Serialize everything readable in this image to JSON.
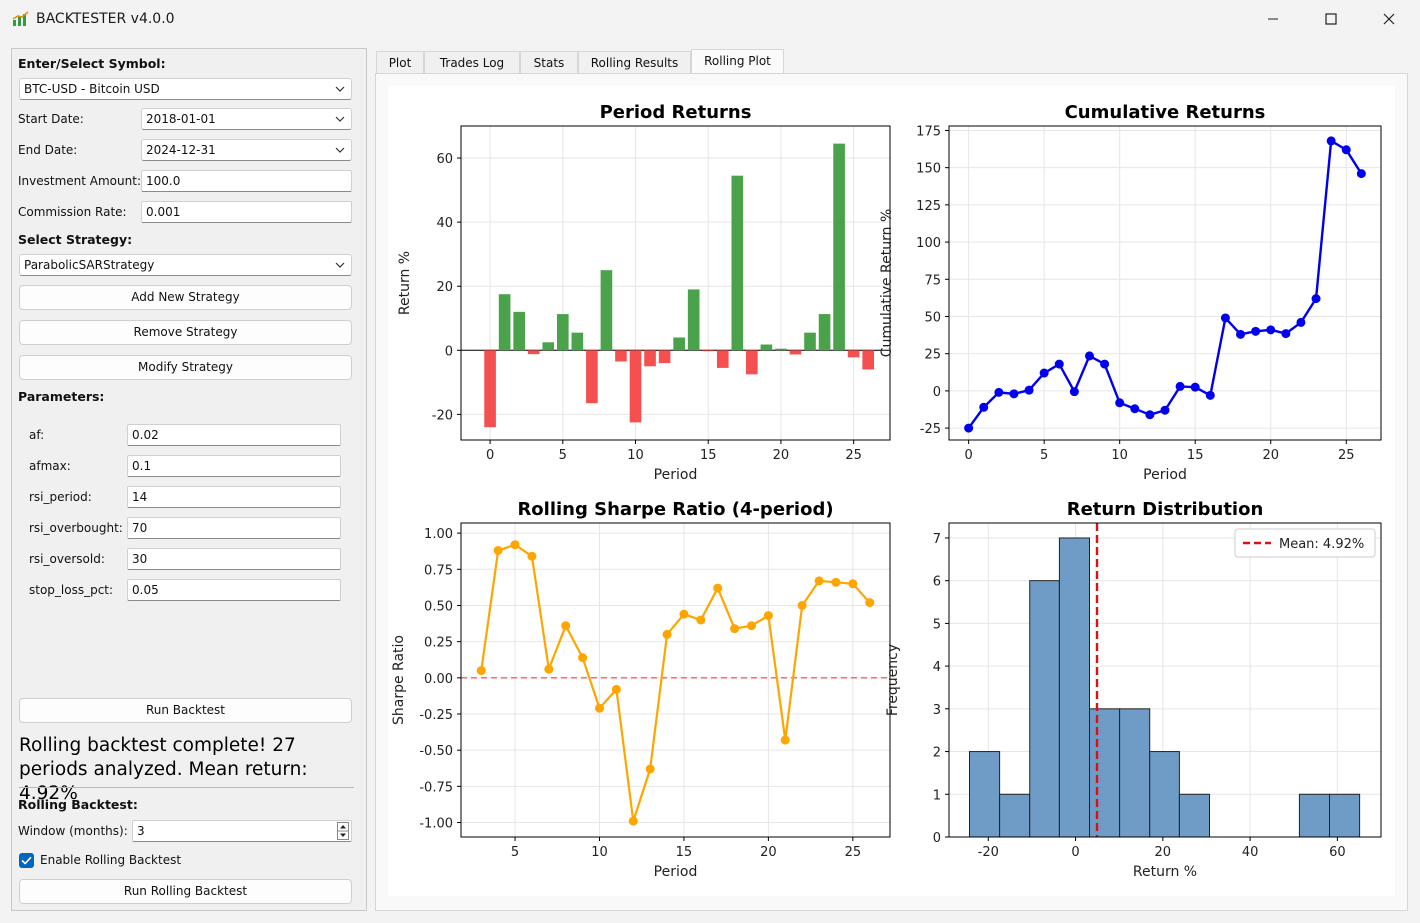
{
  "window": {
    "title": "BACKTESTER v4.0.0"
  },
  "left": {
    "symbol_label": "Enter/Select Symbol:",
    "symbol_value": "BTC-USD - Bitcoin USD",
    "start_label": "Start Date:",
    "start_value": "2018-01-01",
    "end_label": "End Date:",
    "end_value": "2024-12-31",
    "investment_label": "Investment Amount:",
    "investment_value": "100.0",
    "commission_label": "Commission Rate:",
    "commission_value": "0.001",
    "strategy_label": "Select Strategy:",
    "strategy_value": "ParabolicSARStrategy",
    "add_strategy": "Add New Strategy",
    "remove_strategy": "Remove Strategy",
    "modify_strategy": "Modify Strategy",
    "params_label": "Parameters:",
    "params": [
      {
        "name": "af:",
        "value": "0.02"
      },
      {
        "name": "afmax:",
        "value": "0.1"
      },
      {
        "name": "rsi_period:",
        "value": "14"
      },
      {
        "name": "rsi_overbought:",
        "value": "70"
      },
      {
        "name": "rsi_oversold:",
        "value": "30"
      },
      {
        "name": "stop_loss_pct:",
        "value": "0.05"
      }
    ],
    "run_backtest": "Run Backtest",
    "status": "Rolling backtest complete! 27 periods analyzed. Mean return: 4.92%",
    "rolling_label": "Rolling Backtest:",
    "window_label": "Window (months):",
    "window_value": "3",
    "enable_rolling": "Enable Rolling Backtest",
    "enable_rolling_checked": true,
    "run_rolling": "Run Rolling Backtest"
  },
  "tabs": [
    "Plot",
    "Trades Log",
    "Stats",
    "Rolling Results",
    "Rolling Plot"
  ],
  "active_tab": "Rolling Plot",
  "chart_data": [
    {
      "type": "bar",
      "title": "Period Returns",
      "xlabel": "Period",
      "ylabel": "Return %",
      "x": [
        0,
        1,
        2,
        3,
        4,
        5,
        6,
        7,
        8,
        9,
        10,
        11,
        12,
        13,
        14,
        15,
        16,
        17,
        18,
        19,
        20,
        21,
        22,
        23,
        24,
        25,
        26
      ],
      "values": [
        -24.0,
        17.5,
        12.0,
        -1.2,
        2.5,
        11.3,
        5.5,
        -16.5,
        25.0,
        -3.5,
        -22.5,
        -5.0,
        -4.0,
        4.0,
        19.0,
        -0.3,
        -5.5,
        54.5,
        -7.5,
        1.8,
        0.5,
        -1.3,
        5.5,
        11.3,
        64.5,
        -2.2,
        -6.0
      ],
      "positive_color": "#4aa24a",
      "negative_color": "#f55050",
      "xlim": [
        -2,
        27.5
      ],
      "ylim": [
        -28,
        70
      ],
      "xticks": [
        0,
        5,
        10,
        15,
        20,
        25
      ],
      "yticks": [
        -20,
        0,
        20,
        40,
        60
      ],
      "grid": true
    },
    {
      "type": "line",
      "title": "Cumulative Returns",
      "xlabel": "Period",
      "ylabel": "Cumulative Return %",
      "x": [
        0,
        1,
        2,
        3,
        4,
        5,
        6,
        7,
        8,
        9,
        10,
        11,
        12,
        13,
        14,
        15,
        16,
        17,
        18,
        19,
        20,
        21,
        22,
        23,
        24,
        25,
        26
      ],
      "values": [
        -25,
        -11,
        -1,
        -2,
        0.5,
        12,
        18,
        -0.5,
        23.5,
        18,
        -8,
        -12,
        -16,
        -13,
        3,
        2.5,
        -3,
        49,
        38,
        40,
        41,
        38.5,
        46,
        62,
        168,
        162,
        146
      ],
      "color": "#0000ee",
      "xlim": [
        -1.3,
        27.3
      ],
      "ylim": [
        -33,
        178
      ],
      "xticks": [
        0,
        5,
        10,
        15,
        20,
        25
      ],
      "yticks": [
        -25,
        0,
        25,
        50,
        75,
        100,
        125,
        150,
        175
      ],
      "grid": true
    },
    {
      "type": "line",
      "title": "Rolling Sharpe Ratio (4-period)",
      "xlabel": "Period",
      "ylabel": "Sharpe Ratio",
      "x": [
        3,
        4,
        5,
        6,
        7,
        8,
        9,
        10,
        11,
        12,
        13,
        14,
        15,
        16,
        17,
        18,
        19,
        20,
        21,
        22,
        23,
        24,
        25,
        26
      ],
      "values": [
        0.05,
        0.88,
        0.92,
        0.84,
        0.06,
        0.36,
        0.14,
        -0.21,
        -0.08,
        -0.99,
        -0.63,
        0.3,
        0.44,
        0.4,
        0.62,
        0.34,
        0.36,
        0.43,
        -0.43,
        0.5,
        0.67,
        0.66,
        0.65,
        0.52
      ],
      "color": "#ffa500",
      "zero_line_color": "#f06060",
      "xlim": [
        1.8,
        27.2
      ],
      "ylim": [
        -1.1,
        1.07
      ],
      "xticks": [
        5,
        10,
        15,
        20,
        25
      ],
      "yticks": [
        -1.0,
        -0.75,
        -0.5,
        -0.25,
        0.0,
        0.25,
        0.5,
        0.75,
        1.0
      ],
      "grid": true
    },
    {
      "type": "bar",
      "title": "Return Distribution",
      "xlabel": "Return %",
      "ylabel": "Frequency",
      "bin_edges": [
        -24.3,
        -17.4,
        -10.5,
        -3.7,
        3.2,
        10.1,
        17.0,
        23.8,
        30.7,
        37.6,
        44.5,
        51.3,
        58.2,
        65.1
      ],
      "values": [
        2,
        1,
        6,
        7,
        3,
        3,
        2,
        1,
        0,
        0,
        0,
        1,
        1
      ],
      "color": "#6f9cc7",
      "mean_line": {
        "value": 4.92,
        "label": "Mean: 4.92%",
        "color": "#dd1111"
      },
      "legend": "top-right",
      "xlim": [
        -29,
        70
      ],
      "ylim": [
        0,
        7.35
      ],
      "xticks": [
        -20,
        0,
        20,
        40,
        60
      ],
      "yticks": [
        0,
        1,
        2,
        3,
        4,
        5,
        6,
        7
      ],
      "grid": true
    }
  ]
}
